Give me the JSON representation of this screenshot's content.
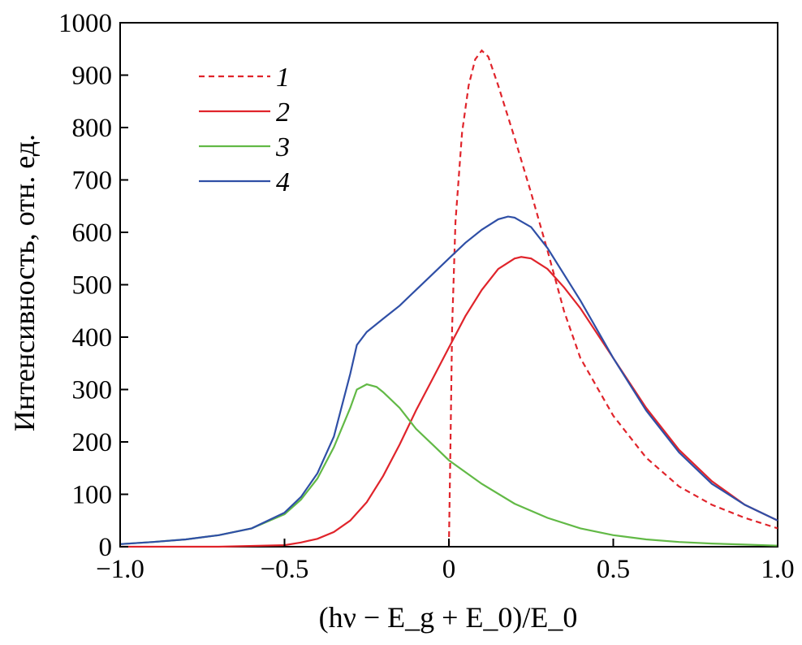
{
  "chart_data": {
    "type": "line",
    "xlabel": "(hν − E_g + E_0)/E_0",
    "ylabel": "Интенсивность, отн. ед.",
    "xlim": [
      -1.0,
      1.0
    ],
    "ylim": [
      0,
      1000
    ],
    "xticks": [
      "−1.0",
      "−0.5",
      "0",
      "0.5",
      "1.0"
    ],
    "yticks": [
      "0",
      "100",
      "200",
      "300",
      "400",
      "500",
      "600",
      "700",
      "800",
      "900",
      "1000"
    ],
    "grid": false,
    "legend_position": "top-left",
    "series": [
      {
        "name": "1",
        "color": "#e0242b",
        "dash": "dashed",
        "x": [
          0.0,
          0.005,
          0.01,
          0.02,
          0.04,
          0.06,
          0.08,
          0.1,
          0.12,
          0.15,
          0.2,
          0.25,
          0.3,
          0.35,
          0.4,
          0.5,
          0.6,
          0.7,
          0.8,
          0.9,
          1.0
        ],
        "y": [
          0,
          200,
          420,
          620,
          790,
          880,
          930,
          947,
          935,
          880,
          780,
          675,
          565,
          450,
          360,
          250,
          170,
          115,
          80,
          55,
          35
        ]
      },
      {
        "name": "2",
        "color": "#e0242b",
        "dash": "solid",
        "x": [
          -1.0,
          -0.7,
          -0.5,
          -0.45,
          -0.4,
          -0.35,
          -0.3,
          -0.25,
          -0.2,
          -0.15,
          -0.1,
          -0.05,
          0.0,
          0.05,
          0.1,
          0.15,
          0.2,
          0.22,
          0.25,
          0.3,
          0.35,
          0.4,
          0.5,
          0.6,
          0.7,
          0.8,
          0.9,
          1.0
        ],
        "y": [
          0,
          0,
          3,
          8,
          15,
          28,
          50,
          85,
          135,
          195,
          260,
          320,
          380,
          440,
          490,
          530,
          550,
          553,
          550,
          530,
          495,
          455,
          360,
          265,
          185,
          125,
          80,
          50
        ]
      },
      {
        "name": "3",
        "color": "#62b946",
        "dash": "solid",
        "x": [
          -1.0,
          -0.9,
          -0.8,
          -0.7,
          -0.6,
          -0.5,
          -0.45,
          -0.4,
          -0.35,
          -0.3,
          -0.28,
          -0.25,
          -0.22,
          -0.2,
          -0.15,
          -0.1,
          -0.05,
          0.0,
          0.1,
          0.2,
          0.3,
          0.4,
          0.5,
          0.6,
          0.7,
          0.8,
          0.9,
          1.0
        ],
        "y": [
          5,
          9,
          14,
          22,
          35,
          62,
          90,
          130,
          190,
          265,
          300,
          310,
          305,
          295,
          265,
          225,
          195,
          165,
          120,
          82,
          55,
          35,
          22,
          14,
          9,
          6,
          4,
          2
        ]
      },
      {
        "name": "4",
        "color": "#2f4fa6",
        "dash": "solid",
        "x": [
          -1.0,
          -0.9,
          -0.8,
          -0.7,
          -0.6,
          -0.5,
          -0.45,
          -0.4,
          -0.35,
          -0.3,
          -0.28,
          -0.25,
          -0.2,
          -0.15,
          -0.1,
          -0.05,
          0.0,
          0.05,
          0.1,
          0.15,
          0.18,
          0.2,
          0.25,
          0.3,
          0.4,
          0.5,
          0.6,
          0.7,
          0.8,
          0.9,
          1.0
        ],
        "y": [
          5,
          9,
          14,
          22,
          35,
          65,
          95,
          140,
          210,
          330,
          385,
          410,
          435,
          460,
          490,
          520,
          550,
          580,
          605,
          625,
          630,
          628,
          610,
          570,
          470,
          360,
          260,
          180,
          120,
          80,
          50
        ]
      }
    ]
  }
}
